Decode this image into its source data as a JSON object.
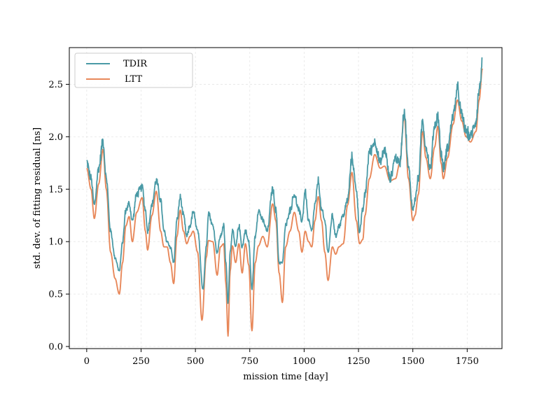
{
  "chart_data": {
    "type": "line",
    "xlabel": "mission time [day]",
    "ylabel": "std. dev. of fitting residual [ns]",
    "xlim": [
      -80,
      1910
    ],
    "ylim": [
      -0.02,
      2.85
    ],
    "xticks": [
      0,
      250,
      500,
      750,
      1000,
      1250,
      1500,
      1750
    ],
    "yticks": [
      0.0,
      0.5,
      1.0,
      1.5,
      2.0,
      2.5
    ],
    "xtick_labels": [
      "0",
      "250",
      "500",
      "750",
      "1000",
      "1250",
      "1500",
      "1750"
    ],
    "ytick_labels": [
      "0.0",
      "0.5",
      "1.0",
      "1.5",
      "2.0",
      "2.5"
    ],
    "grid": true,
    "legend_position": "upper-left",
    "series": [
      {
        "name": "TDIR",
        "color": "#4a9aa6",
        "noise": true,
        "x": [
          0,
          20,
          35,
          55,
          75,
          90,
          110,
          130,
          150,
          165,
          180,
          195,
          210,
          230,
          255,
          270,
          280,
          300,
          320,
          340,
          355,
          370,
          385,
          400,
          415,
          430,
          445,
          460,
          475,
          490,
          510,
          535,
          550,
          560,
          580,
          600,
          615,
          630,
          640,
          650,
          660,
          670,
          685,
          700,
          715,
          730,
          745,
          760,
          775,
          790,
          810,
          830,
          855,
          870,
          885,
          900,
          915,
          935,
          955,
          975,
          990,
          1005,
          1020,
          1035,
          1050,
          1065,
          1080,
          1095,
          1110,
          1130,
          1145,
          1160,
          1180,
          1200,
          1220,
          1240,
          1255,
          1270,
          1280,
          1300,
          1325,
          1350,
          1370,
          1395,
          1420,
          1440,
          1460,
          1480,
          1500,
          1510,
          1525,
          1545,
          1560,
          1580,
          1600,
          1615,
          1630,
          1640,
          1660,
          1685,
          1705,
          1725,
          1745,
          1765,
          1790,
          1805,
          1820
        ],
        "y": [
          1.76,
          1.6,
          1.35,
          1.7,
          1.96,
          1.6,
          1.1,
          0.85,
          0.72,
          1.0,
          1.3,
          1.36,
          1.2,
          1.45,
          1.52,
          1.3,
          1.1,
          1.35,
          1.58,
          1.4,
          1.1,
          1.0,
          0.95,
          0.8,
          1.2,
          1.42,
          1.25,
          1.05,
          1.15,
          1.28,
          1.1,
          0.55,
          0.95,
          1.28,
          1.15,
          0.9,
          1.05,
          1.15,
          0.8,
          0.42,
          0.9,
          1.1,
          0.95,
          1.15,
          0.95,
          1.1,
          1.0,
          0.55,
          1.05,
          1.3,
          1.2,
          1.1,
          1.5,
          1.3,
          0.8,
          0.8,
          1.15,
          1.3,
          1.45,
          1.3,
          1.2,
          1.48,
          1.2,
          1.1,
          1.35,
          1.58,
          1.3,
          1.2,
          0.9,
          1.25,
          1.05,
          1.15,
          1.25,
          1.4,
          1.8,
          1.5,
          1.1,
          1.3,
          1.45,
          1.85,
          1.95,
          1.75,
          1.88,
          1.6,
          1.8,
          1.75,
          2.25,
          1.7,
          1.3,
          1.4,
          1.6,
          2.15,
          1.9,
          1.7,
          2.1,
          2.2,
          1.85,
          1.7,
          1.9,
          2.2,
          2.45,
          2.2,
          2.05,
          2.0,
          2.15,
          2.45,
          2.7
        ]
      },
      {
        "name": "LTT",
        "color": "#e8885a",
        "noise": false,
        "x": [
          0,
          20,
          35,
          55,
          75,
          90,
          110,
          130,
          150,
          165,
          180,
          195,
          210,
          230,
          255,
          270,
          280,
          300,
          320,
          340,
          355,
          370,
          385,
          400,
          415,
          430,
          445,
          460,
          475,
          490,
          510,
          530,
          550,
          560,
          580,
          600,
          615,
          630,
          640,
          650,
          660,
          670,
          685,
          700,
          715,
          730,
          745,
          760,
          775,
          790,
          810,
          830,
          855,
          870,
          885,
          900,
          915,
          935,
          955,
          975,
          990,
          1005,
          1020,
          1035,
          1050,
          1065,
          1080,
          1095,
          1110,
          1130,
          1145,
          1160,
          1180,
          1200,
          1220,
          1240,
          1255,
          1270,
          1280,
          1300,
          1325,
          1350,
          1370,
          1395,
          1420,
          1440,
          1460,
          1480,
          1500,
          1510,
          1525,
          1545,
          1560,
          1580,
          1600,
          1615,
          1630,
          1640,
          1660,
          1685,
          1705,
          1725,
          1745,
          1765,
          1790,
          1805,
          1820
        ],
        "y": [
          1.7,
          1.5,
          1.22,
          1.55,
          1.88,
          1.5,
          0.9,
          0.65,
          0.5,
          0.8,
          1.15,
          1.24,
          1.0,
          1.28,
          1.42,
          1.1,
          0.92,
          1.25,
          1.48,
          1.1,
          0.95,
          0.95,
          0.8,
          0.6,
          1.05,
          1.3,
          1.1,
          0.98,
          1.05,
          1.1,
          0.9,
          0.25,
          0.85,
          1.01,
          1.0,
          0.68,
          0.95,
          0.98,
          0.6,
          0.1,
          0.72,
          0.96,
          0.8,
          0.98,
          0.7,
          0.98,
          0.78,
          0.15,
          0.8,
          0.96,
          1.05,
          0.95,
          1.36,
          1.2,
          0.7,
          0.42,
          0.95,
          1.1,
          1.28,
          1.1,
          0.9,
          1.1,
          1.0,
          0.95,
          1.2,
          1.43,
          1.2,
          0.9,
          0.63,
          0.95,
          0.88,
          0.95,
          0.98,
          1.35,
          1.66,
          1.2,
          0.98,
          1.02,
          1.25,
          1.6,
          1.83,
          1.7,
          1.72,
          1.58,
          1.6,
          1.75,
          2.2,
          1.6,
          1.2,
          1.25,
          1.45,
          2.05,
          1.8,
          1.6,
          1.9,
          2.1,
          1.75,
          1.6,
          1.8,
          2.12,
          2.35,
          2.15,
          2.0,
          1.95,
          2.05,
          2.35,
          2.65
        ]
      }
    ]
  }
}
